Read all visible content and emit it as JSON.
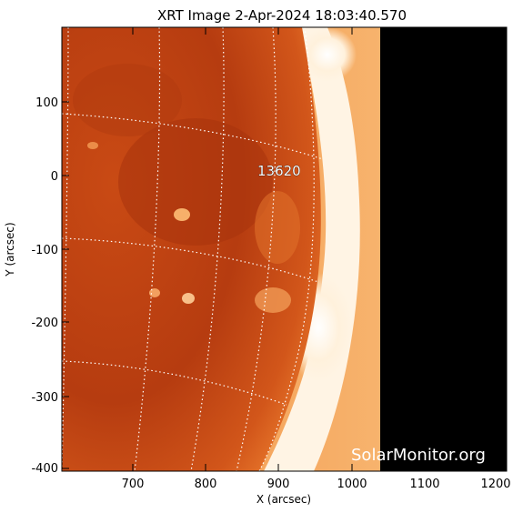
{
  "title": "XRT Image  2-Apr-2024 18:03:40.570",
  "x_axis": {
    "label": "X (arcsec)",
    "ticks": [
      "700",
      "800",
      "900",
      "1000",
      "1100",
      "1200"
    ]
  },
  "y_axis": {
    "label": "Y (arcsec)",
    "ticks": [
      "100",
      "0",
      "-100",
      "-200",
      "-300",
      "-400"
    ]
  },
  "active_region_label": "13620",
  "watermark": "SolarMonitor.org",
  "colors": {
    "disk_dark": "#b33a0e",
    "disk_mid": "#cf5218",
    "limb_bright": "#fff3e0",
    "corona": "#f6a453",
    "off_field": "#000000",
    "grid": "#ffffff"
  }
}
